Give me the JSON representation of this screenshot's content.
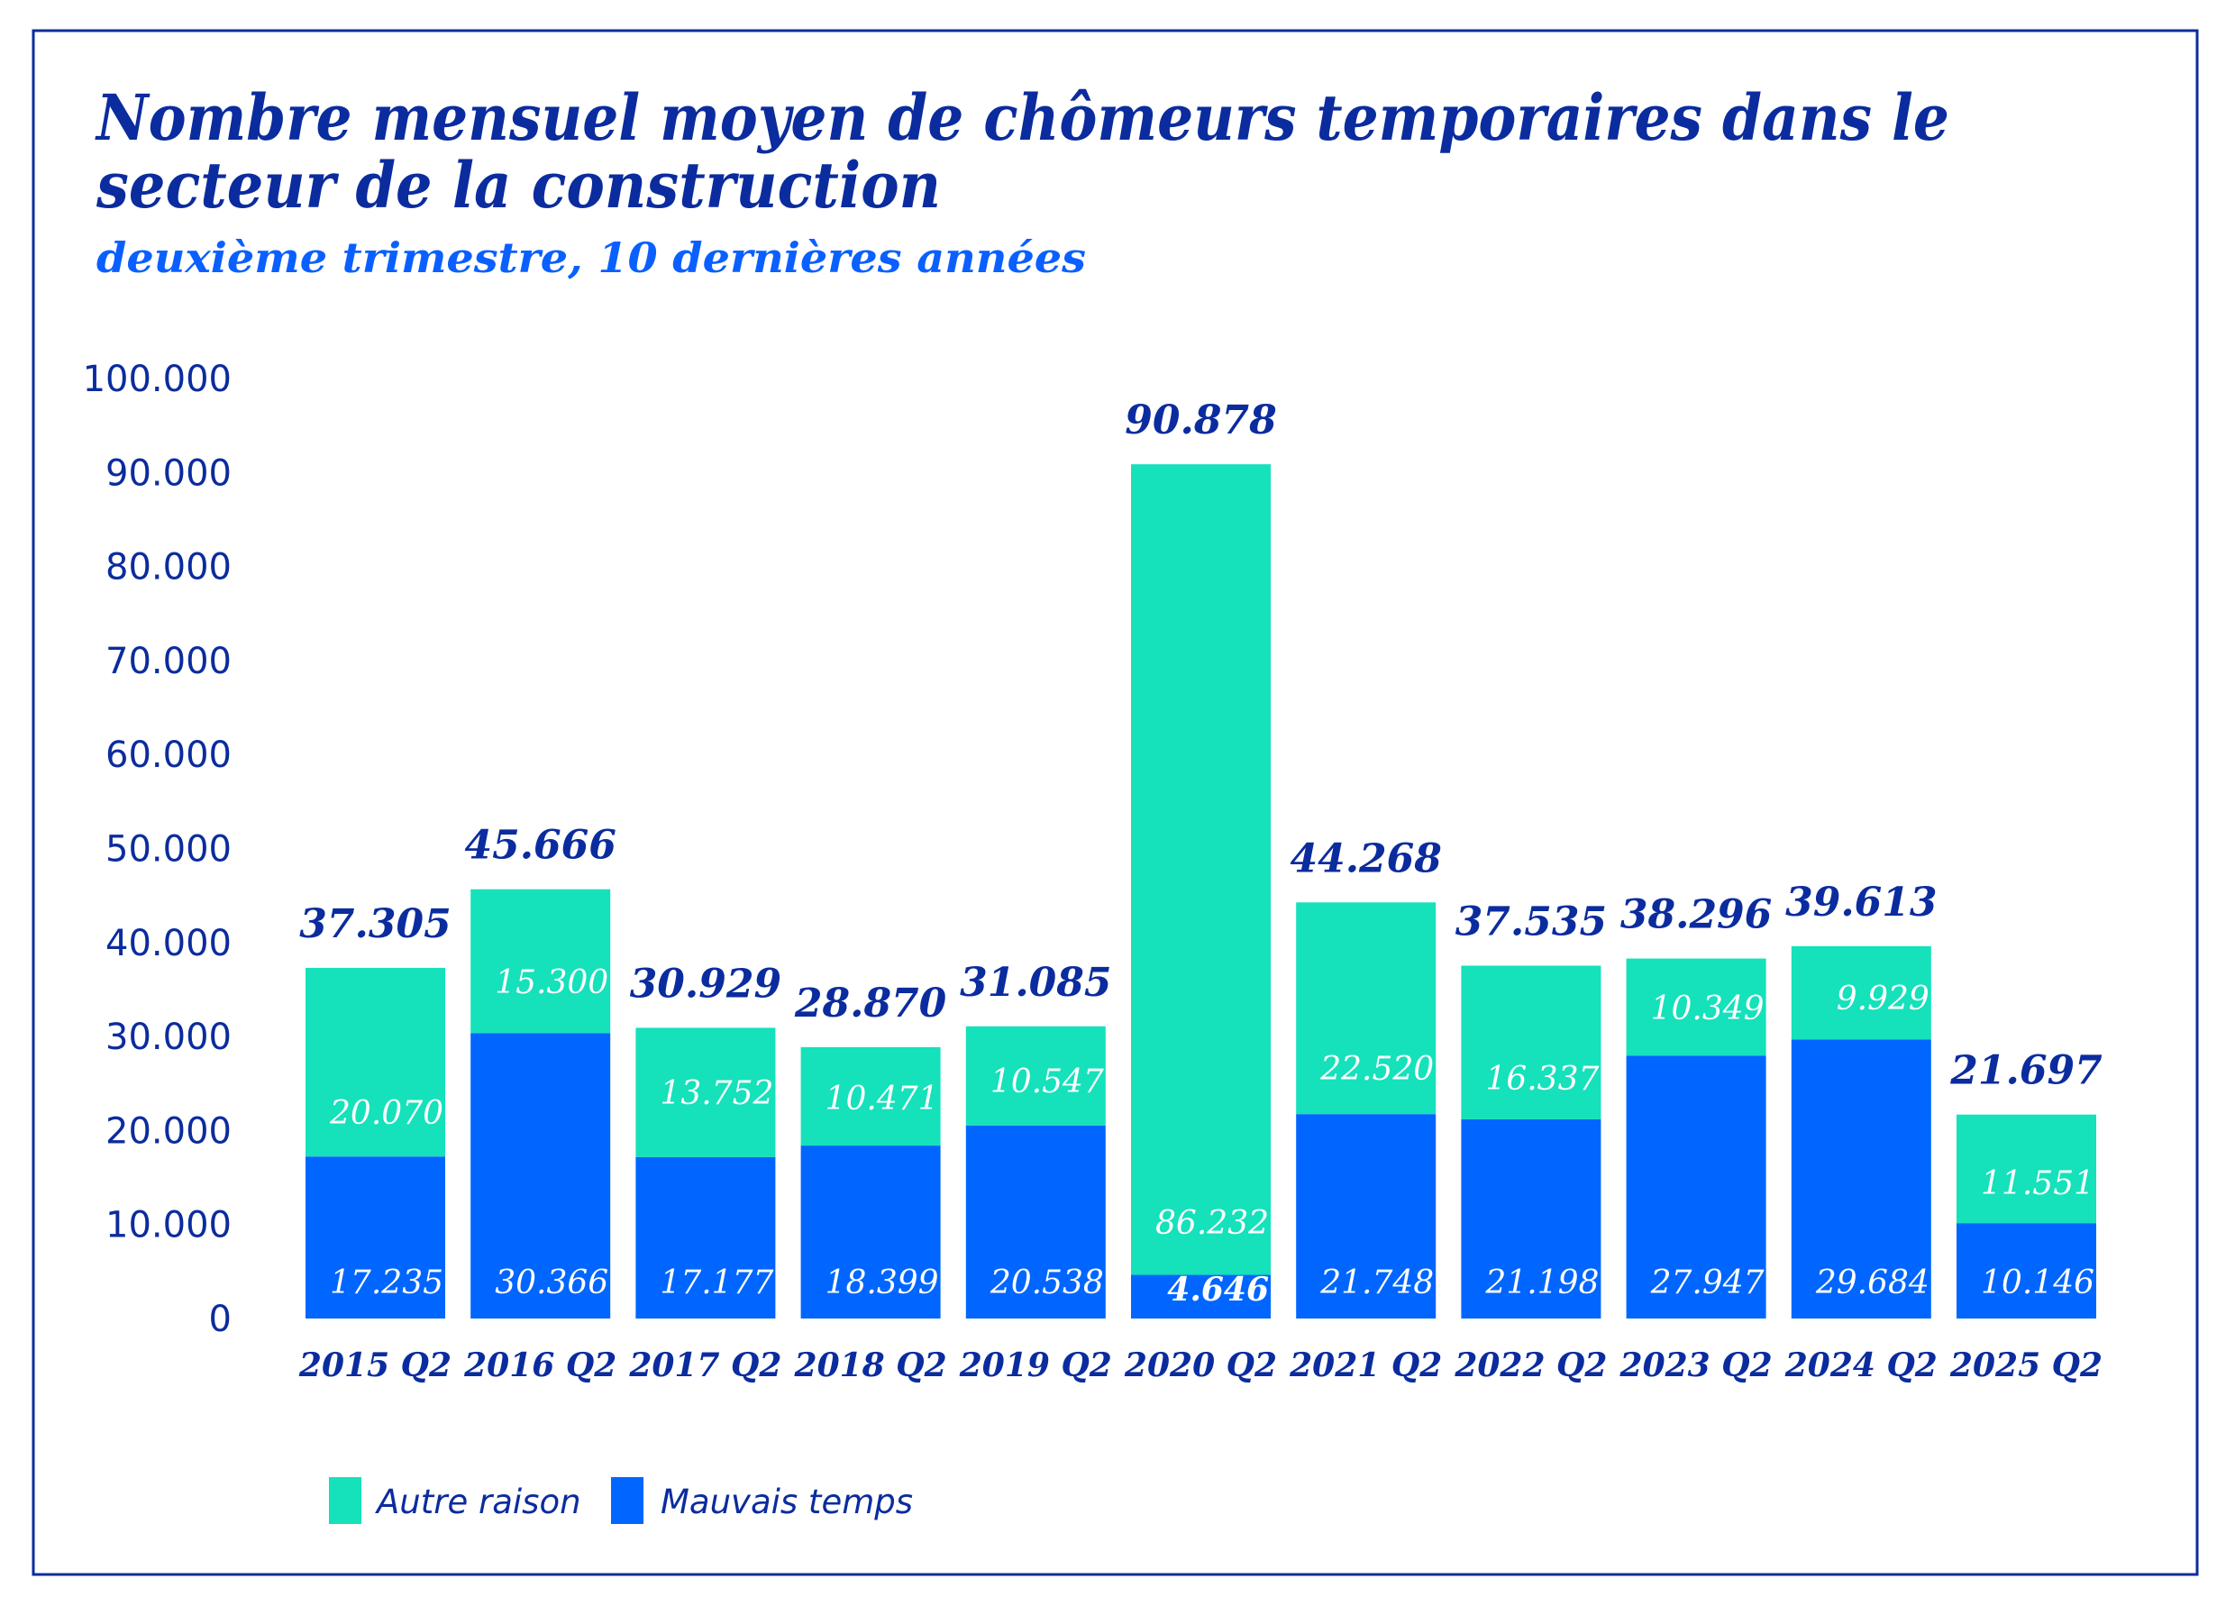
{
  "chart_data": {
    "type": "bar",
    "stacked": true,
    "title": "Nombre mensuel moyen de chômeurs temporaires dans le secteur de la construction",
    "title_lines": [
      "Nombre mensuel moyen de chômeurs temporaires dans le",
      "secteur de la construction"
    ],
    "subtitle": "deuxième trimestre, 10 dernières années",
    "xlabel": "",
    "ylabel": "",
    "ylim": [
      0,
      100000
    ],
    "yticks": [
      0,
      10000,
      20000,
      30000,
      40000,
      50000,
      60000,
      70000,
      80000,
      90000,
      100000
    ],
    "ytick_labels": [
      "0",
      "10.000",
      "20.000",
      "30.000",
      "40.000",
      "50.000",
      "60.000",
      "70.000",
      "80.000",
      "90.000",
      "100.000"
    ],
    "grid": false,
    "legend_position": "bottom-left",
    "categories": [
      "2015 Q2",
      "2016 Q2",
      "2017 Q2",
      "2018 Q2",
      "2019 Q2",
      "2020 Q2",
      "2021 Q2",
      "2022 Q2",
      "2023 Q2",
      "2024 Q2",
      "2025 Q2"
    ],
    "series": [
      {
        "name": "Mauvais temps",
        "color": "#0066ff",
        "values": [
          17235,
          30366,
          17177,
          18399,
          20538,
          4646,
          21748,
          21198,
          27947,
          29684,
          10146
        ],
        "labels": [
          "17.235",
          "30.366",
          "17.177",
          "18.399",
          "20.538",
          "4.646",
          "21.748",
          "21.198",
          "27.947",
          "29.684",
          "10.146"
        ]
      },
      {
        "name": "Autre raison",
        "color": "#15e1bb",
        "values": [
          20070,
          15300,
          13752,
          10471,
          10547,
          86232,
          22520,
          16337,
          10349,
          9929,
          11551
        ],
        "labels": [
          "20.070",
          "15.300",
          "13.752",
          "10.471",
          "10.547",
          "86.232",
          "22.520",
          "16.337",
          "10.349",
          "9.929",
          "11.551"
        ]
      }
    ],
    "totals": [
      37305,
      45666,
      30929,
      28870,
      31085,
      90878,
      44268,
      37535,
      38296,
      39613,
      21697
    ],
    "total_labels": [
      "37.305",
      "45.666",
      "30.929",
      "28.870",
      "31.085",
      "90.878",
      "44.268",
      "37.535",
      "38.296",
      "39.613",
      "21.697"
    ],
    "legend": [
      {
        "label": "Autre raison",
        "color": "#15e1bb"
      },
      {
        "label": "Mauvais temps",
        "color": "#0066ff"
      }
    ]
  }
}
